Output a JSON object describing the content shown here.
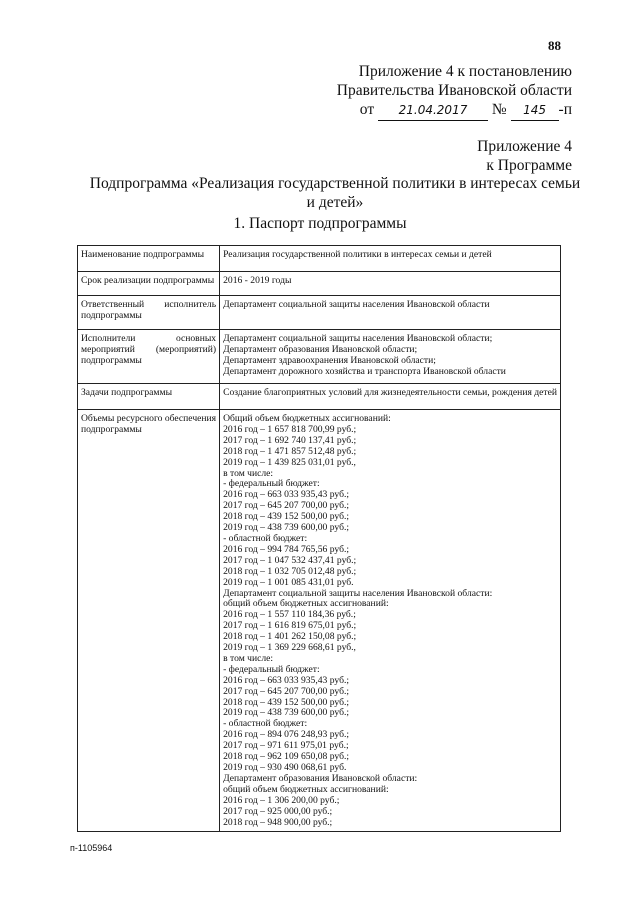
{
  "page_number": "88",
  "header": {
    "line1": "Приложение 4 к постановлению",
    "line2": "Правительства Ивановской области",
    "from_label": "от",
    "date": "21.04.2017",
    "number_label": "№",
    "number": "145",
    "suffix": "-п"
  },
  "appendix": {
    "line1": "Приложение 4",
    "line2": "к Программе"
  },
  "title": {
    "line1": "Подпрограмма «Реализация государственной политики в интересах семьи",
    "line2": "и детей»"
  },
  "section_title": "1. Паспорт подпрограммы",
  "table": {
    "rows": [
      {
        "label": "Наименование подпрограммы",
        "lines": [
          "Реализация государственной политики в интересах семьи и детей"
        ]
      },
      {
        "label": "Срок реализации подпрограммы",
        "lines": [
          "2016 - 2019 годы"
        ]
      },
      {
        "label": "Ответственный исполнитель подпрограммы",
        "lines": [
          "Департамент социальной защиты населения Ивановской области"
        ]
      },
      {
        "label": "Исполнители основных мероприятий (мероприятий) подпрограммы",
        "lines": [
          "Департамент социальной защиты населения Ивановской области;",
          "Департамент образования Ивановской области;",
          "Департамент здравоохранения Ивановской области;",
          "Департамент дорожного хозяйства и транспорта Ивановской области"
        ]
      },
      {
        "label": "Задачи подпрограммы",
        "lines": [
          "Создание благоприятных условий для жизнедеятельности семьи, рождения детей"
        ]
      },
      {
        "label": "Объемы ресурсного обеспечения подпрограммы",
        "lines": [
          "Общий объем бюджетных ассигнований:",
          "2016 год – 1 657 818 700,99 руб.;",
          "2017 год – 1 692 740 137,41 руб.;",
          "2018 год – 1 471 857 512,48 руб.;",
          "2019 год – 1 439 825 031,01 руб.,",
          "в том числе:",
          "- федеральный бюджет:",
          "2016 год – 663 033 935,43 руб.;",
          "2017 год – 645 207 700,00 руб.;",
          "2018 год – 439 152 500,00 руб.;",
          "2019 год – 438 739 600,00 руб.;",
          "- областной бюджет:",
          "2016 год – 994 784 765,56 руб.;",
          "2017 год – 1 047 532 437,41 руб.;",
          "2018 год – 1 032 705 012,48 руб.;",
          "2019 год – 1 001 085 431,01 руб.",
          "Департамент социальной защиты населения Ивановской области:",
          "общий объем бюджетных ассигнований:",
          "2016 год – 1 557 110 184,36 руб.;",
          "2017 год – 1 616 819 675,01 руб.;",
          "2018 год – 1 401 262 150,08 руб.;",
          "2019 год – 1 369 229 668,61 руб.,",
          "в том числе:",
          "- федеральный бюджет:",
          "2016 год – 663 033 935,43 руб.;",
          "2017 год – 645 207 700,00 руб.;",
          "2018 год – 439 152 500,00 руб.;",
          "2019 год – 438 739 600,00 руб.;",
          "- областной бюджет:",
          "2016 год – 894 076 248,93 руб.;",
          "2017 год – 971 611 975,01 руб.;",
          "2018 год – 962 109 650,08 руб.;",
          "2019 год – 930 490 068,61 руб.",
          "Департамент образования Ивановской области:",
          "общий объем бюджетных ассигнований:",
          "2016 год – 1 306 200,00 руб.;",
          "2017 год – 925 000,00 руб.;",
          "2018 год – 948 900,00 руб.;"
        ]
      }
    ]
  },
  "footer_code": "п-1105964"
}
